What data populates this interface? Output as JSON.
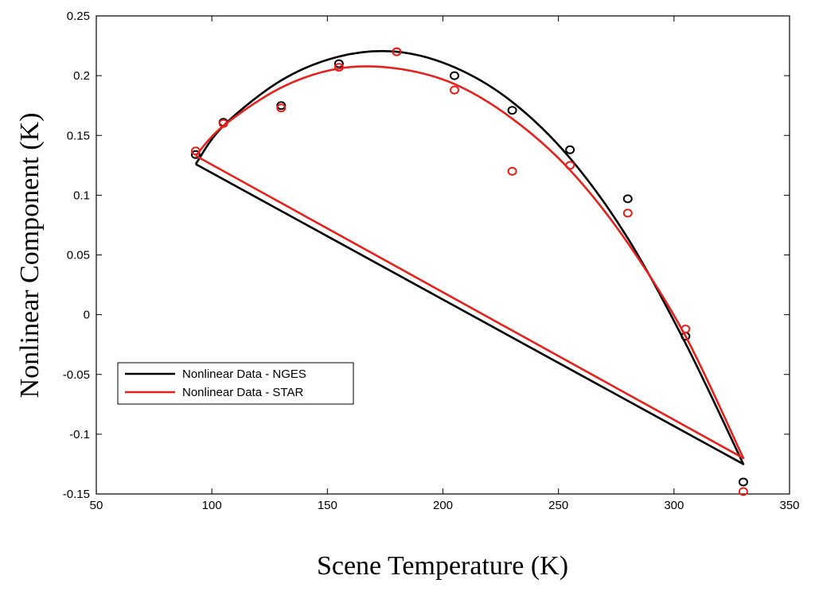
{
  "chart_data": {
    "type": "scatter",
    "title": "",
    "xlabel": "Scene Temperature (K)",
    "ylabel": "Nonlinear Component (K)",
    "xlim": [
      50,
      350
    ],
    "ylim": [
      -0.15,
      0.25
    ],
    "xticks": [
      50,
      100,
      150,
      200,
      250,
      300,
      350
    ],
    "yticks": [
      -0.15,
      -0.1,
      -0.05,
      0,
      0.05,
      0.1,
      0.15,
      0.2,
      0.25
    ],
    "xtick_labels": [
      "50",
      "100",
      "150",
      "200",
      "250",
      "300",
      "350"
    ],
    "ytick_labels": [
      "-0.15",
      "-0.1",
      "-0.05",
      "0",
      "0.05",
      "0.1",
      "0.15",
      "0.2",
      "0.25"
    ],
    "grid": false,
    "legend_position": "lower-left",
    "series": [
      {
        "name": "Nonlinear Data - NGES",
        "color": "#000000",
        "points": {
          "x": [
            93,
            105,
            130,
            155,
            180,
            205,
            230,
            255,
            280,
            305,
            330
          ],
          "y": [
            0.134,
            0.161,
            0.175,
            0.21,
            0.22,
            0.2,
            0.171,
            0.138,
            0.097,
            -0.018,
            -0.14
          ]
        },
        "fit_curve": {
          "x": [
            93,
            105,
            130,
            155,
            180,
            205,
            230,
            255,
            280,
            305,
            330
          ],
          "y": [
            0.126,
            0.158,
            0.196,
            0.216,
            0.22,
            0.207,
            0.178,
            0.131,
            0.064,
            -0.024,
            -0.125
          ]
        }
      },
      {
        "name": "Nonlinear Data - STAR",
        "color": "#e8201c",
        "points": {
          "x": [
            93,
            105,
            130,
            155,
            180,
            205,
            230,
            255,
            280,
            305,
            330
          ],
          "y": [
            0.137,
            0.16,
            0.173,
            0.207,
            0.22,
            0.188,
            0.12,
            0.125,
            0.085,
            -0.012,
            -0.148
          ]
        },
        "fit_curve": {
          "x": [
            93,
            105,
            130,
            155,
            180,
            205,
            230,
            255,
            280,
            305,
            330
          ],
          "y": [
            0.133,
            0.158,
            0.19,
            0.206,
            0.206,
            0.193,
            0.164,
            0.121,
            0.06,
            -0.018,
            -0.12
          ]
        }
      }
    ]
  }
}
